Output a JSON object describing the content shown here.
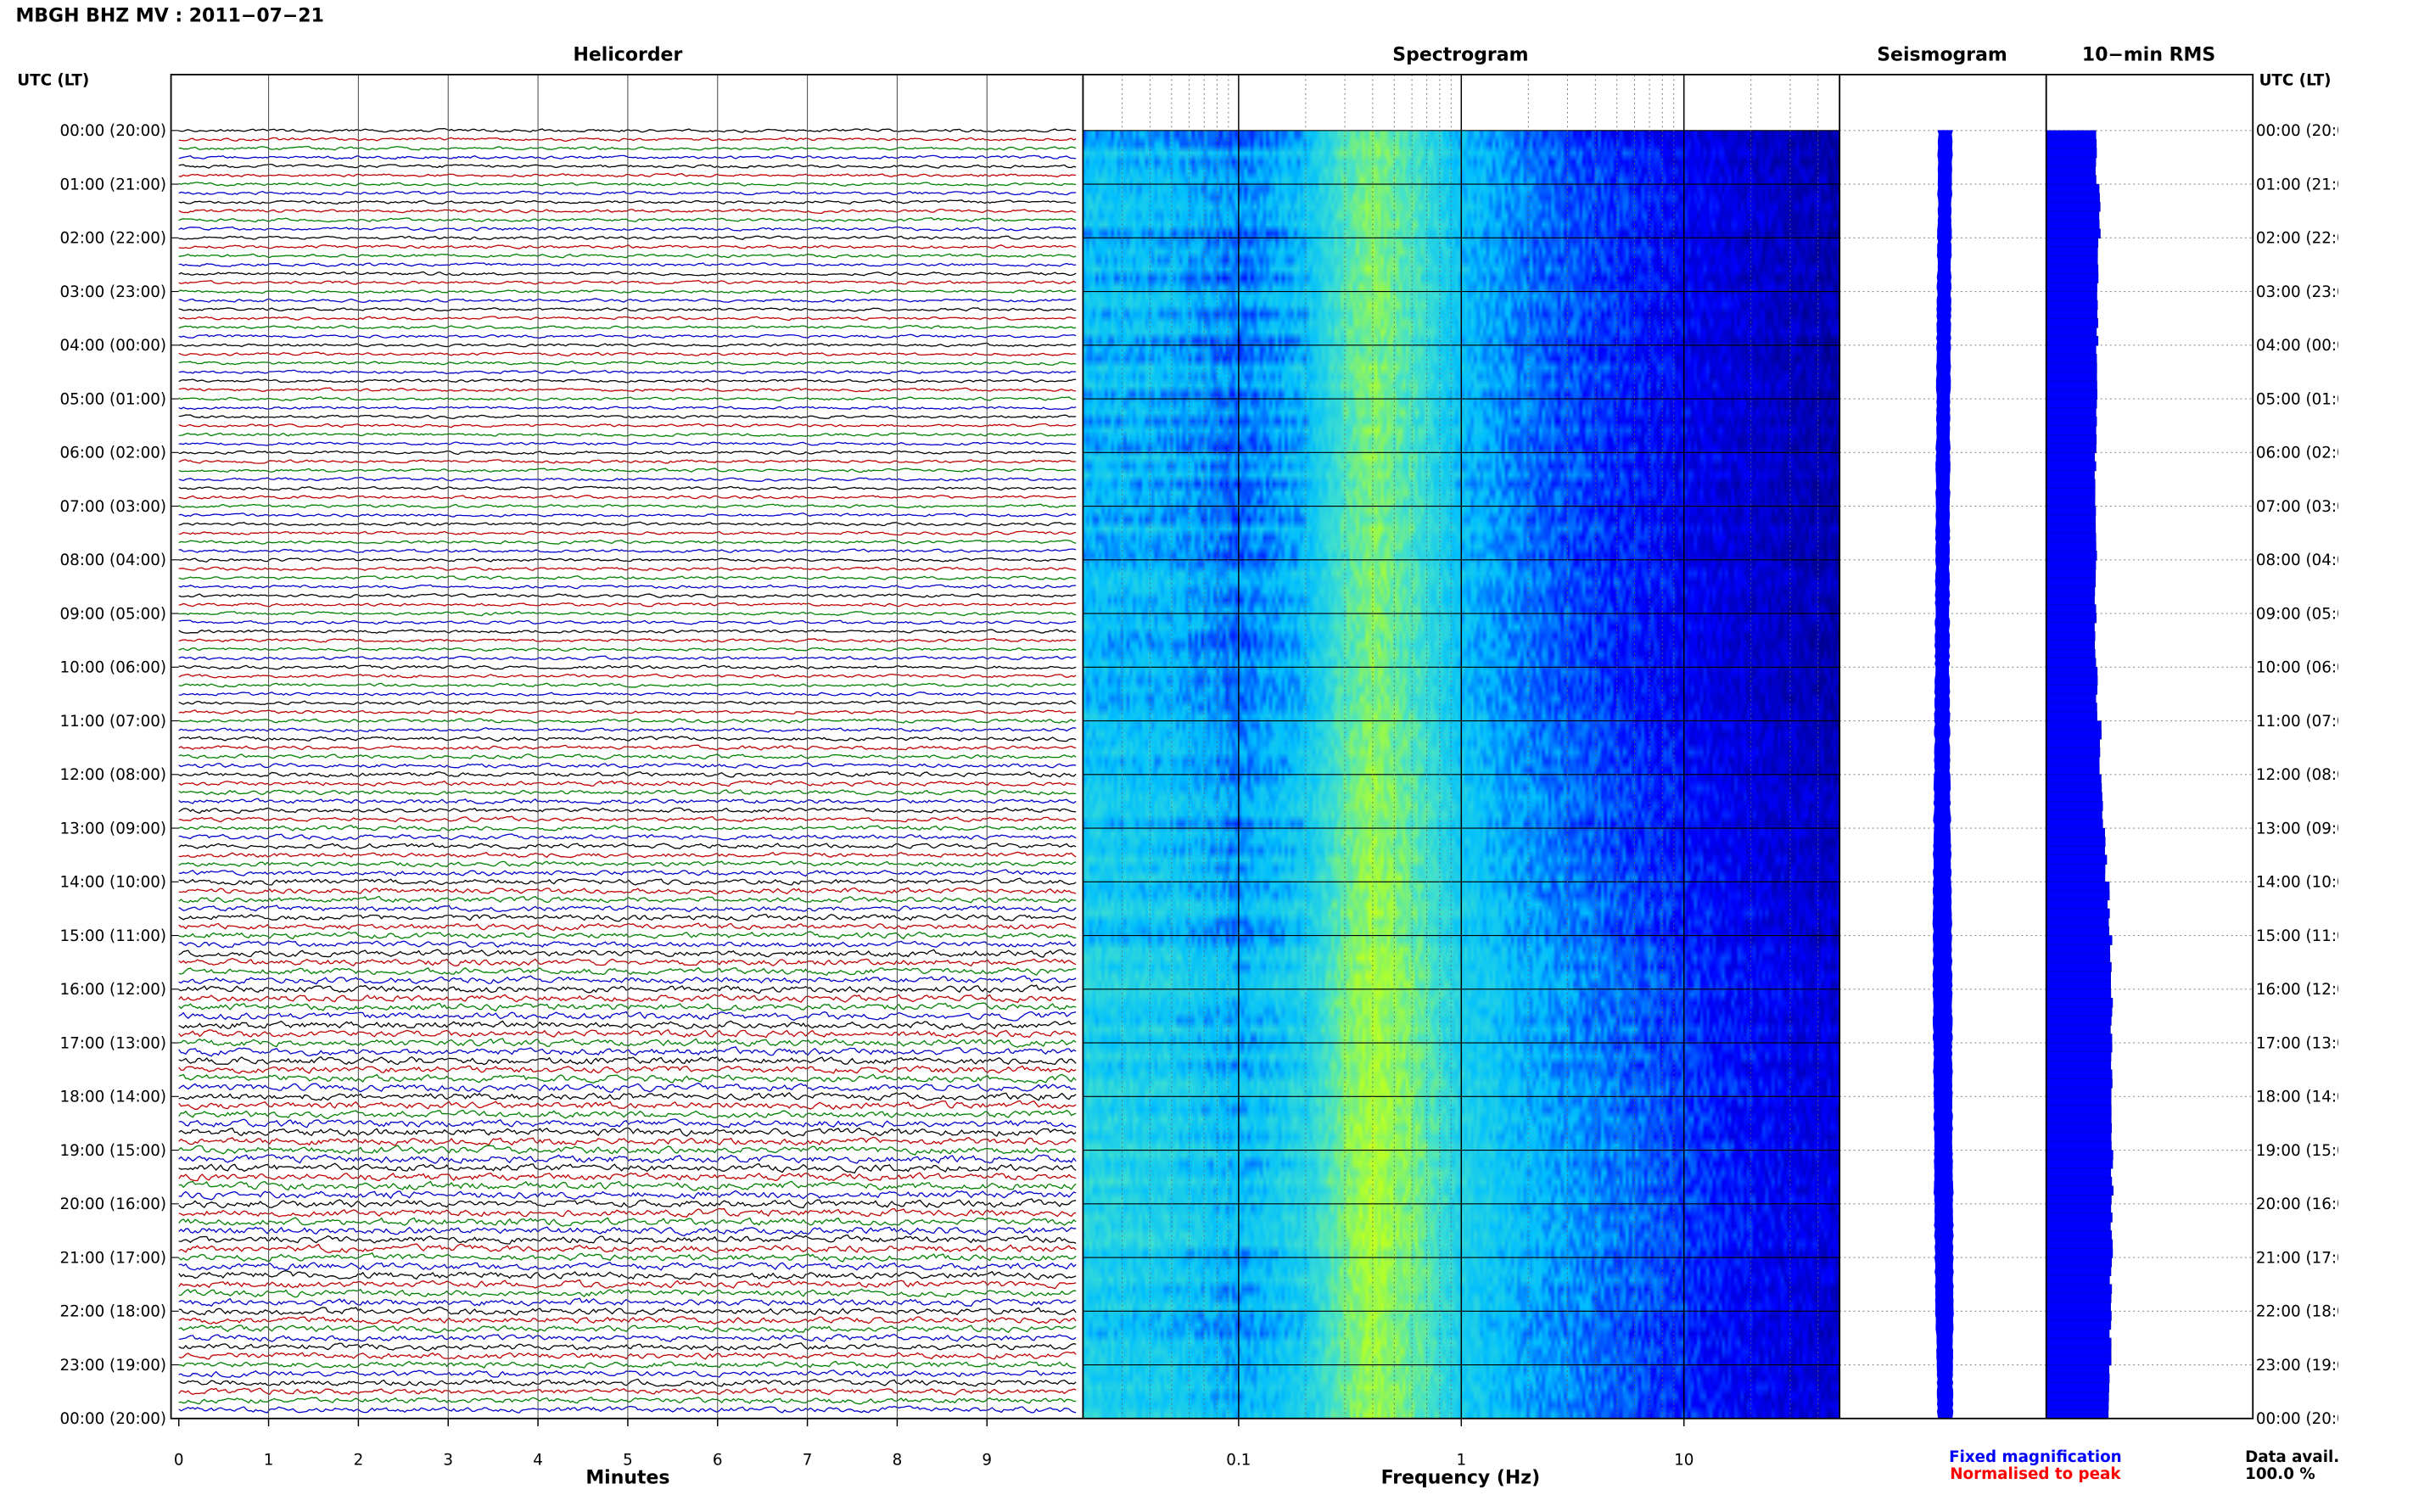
{
  "header": {
    "title": "MBGH BHZ MV : 2011−07−21"
  },
  "panels": {
    "helicorder": "Helicorder",
    "spectrogram": "Spectrogram",
    "seismogram": "Seismogram",
    "rms": "10−min RMS"
  },
  "axis": {
    "left_header": "UTC (LT)",
    "right_header": "UTC (LT)",
    "minutes_label": "Minutes",
    "frequency_label": "Frequency (Hz)"
  },
  "legend": {
    "fixed": "Fixed magnification",
    "normalised": "Normalised to peak"
  },
  "data_avail": {
    "label": "Data avail.",
    "value": "100.0 %"
  },
  "colors": {
    "helicorder_traces": [
      "#000000",
      "#c00000",
      "#008000",
      "#0000cc"
    ],
    "seismogram": "#0000ff",
    "rms": "#0000ff",
    "fixed_legend": "#0000ff",
    "normalised_legend": "#ff0000"
  },
  "chart_data": [
    {
      "type": "line",
      "panel": "Helicorder",
      "xlabel": "Minutes",
      "ylabel": "UTC (LT)",
      "x_ticks": [
        "0",
        "1",
        "2",
        "3",
        "4",
        "5",
        "6",
        "7",
        "8",
        "9"
      ],
      "xlim": [
        0,
        10
      ],
      "lines_per_hour": 6,
      "y_ticks_left": [
        "00:00 (20:00)",
        "01:00 (21:00)",
        "02:00 (22:00)",
        "03:00 (23:00)",
        "04:00 (00:00)",
        "05:00 (01:00)",
        "06:00 (02:00)",
        "07:00 (03:00)",
        "08:00 (04:00)",
        "09:00 (05:00)",
        "10:00 (06:00)",
        "11:00 (07:00)",
        "12:00 (08:00)",
        "13:00 (09:00)",
        "14:00 (10:00)",
        "15:00 (11:00)",
        "16:00 (12:00)",
        "17:00 (13:00)",
        "18:00 (14:00)",
        "19:00 (15:00)",
        "20:00 (16:00)",
        "21:00 (17:00)",
        "22:00 (18:00)",
        "23:00 (19:00)",
        "00:00 (20:00)"
      ],
      "line_amplitude_relative": [
        1.0,
        1.0,
        1.0,
        1.0,
        1.0,
        1.0,
        1.05,
        1.05,
        1.05,
        1.05,
        1.1,
        1.1,
        1.05,
        1.05,
        1.05,
        1.05,
        1.05,
        1.05,
        1.0,
        1.0,
        1.0,
        1.0,
        1.0,
        1.0,
        1.0,
        1.0,
        1.0,
        1.0,
        1.0,
        1.0,
        1.0,
        1.0,
        1.0,
        1.0,
        1.0,
        1.0,
        1.0,
        1.0,
        1.0,
        1.0,
        1.0,
        1.0,
        1.05,
        1.05,
        1.05,
        1.05,
        1.05,
        1.05,
        1.05,
        1.05,
        1.05,
        1.05,
        1.05,
        1.05,
        1.05,
        1.05,
        1.05,
        1.05,
        1.05,
        1.05,
        1.1,
        1.1,
        1.1,
        1.1,
        1.15,
        1.15,
        1.2,
        1.2,
        1.3,
        1.3,
        1.4,
        1.4,
        1.5,
        1.5,
        1.5,
        1.5,
        1.45,
        1.45,
        1.5,
        1.55,
        1.6,
        1.6,
        1.65,
        1.7,
        1.75,
        1.8,
        1.8,
        1.85,
        1.9,
        1.95,
        2.0,
        2.0,
        2.05,
        2.1,
        2.1,
        2.15,
        2.2,
        2.2,
        2.25,
        2.25,
        2.3,
        2.3,
        2.3,
        2.3,
        2.3,
        2.3,
        2.3,
        2.3,
        2.3,
        2.3,
        2.3,
        2.3,
        2.35,
        2.35,
        2.4,
        2.4,
        2.4,
        2.4,
        2.4,
        2.4,
        2.3,
        2.3,
        2.35,
        2.35,
        2.3,
        2.3,
        2.3,
        2.3,
        2.25,
        2.25,
        2.2,
        2.2,
        2.1,
        2.1,
        2.0,
        2.0,
        2.0,
        2.0,
        1.95,
        1.9,
        1.9,
        1.85,
        1.8,
        1.8
      ]
    },
    {
      "type": "heatmap",
      "panel": "Spectrogram",
      "xlabel": "Frequency (Hz)",
      "x_scale": "log",
      "xlim": [
        0.02,
        50
      ],
      "x_ticks": [
        "0.1",
        "1",
        "10"
      ],
      "ylim_hours": [
        0,
        24
      ],
      "relative_power_profile": [
        {
          "freq": 0.02,
          "level": 0.42
        },
        {
          "freq": 0.05,
          "level": 0.4
        },
        {
          "freq": 0.1,
          "level": 0.32
        },
        {
          "freq": 0.2,
          "level": 0.42
        },
        {
          "freq": 0.3,
          "level": 0.62
        },
        {
          "freq": 0.4,
          "level": 0.72
        },
        {
          "freq": 0.6,
          "level": 0.62
        },
        {
          "freq": 1,
          "level": 0.42
        },
        {
          "freq": 2,
          "level": 0.32
        },
        {
          "freq": 5,
          "level": 0.24
        },
        {
          "freq": 10,
          "level": 0.18
        },
        {
          "freq": 20,
          "level": 0.12
        },
        {
          "freq": 50,
          "level": 0.06
        }
      ],
      "colormap": [
        "#00008b",
        "#0000ff",
        "#00bfff",
        "#40e0d0",
        "#adff2f",
        "#ffff00"
      ]
    },
    {
      "type": "line",
      "panel": "Seismogram",
      "note": "Compressed 24 h seismogram envelope, fixed magnification",
      "series": [
        {
          "name": "Fixed magnification",
          "values": [
            1.0,
            0.95,
            0.95,
            0.95,
            0.95,
            0.95,
            0.95,
            0.95,
            0.95,
            1.0,
            1.0,
            1.05,
            1.1,
            1.2,
            1.3,
            1.35,
            1.35,
            1.35,
            1.35,
            1.35,
            1.35,
            1.3,
            1.25,
            1.1,
            1.05
          ]
        }
      ]
    },
    {
      "type": "bar",
      "panel": "10-min RMS",
      "orientation": "horizontal",
      "series": [
        {
          "name": "10-min RMS",
          "values": [
            0.8,
            0.86,
            0.83,
            0.82,
            0.81,
            0.8,
            0.79,
            0.8,
            0.79,
            0.79,
            0.81,
            0.87,
            0.9,
            0.96,
            1.0,
            1.04,
            1.05,
            1.05,
            1.04,
            1.06,
            1.05,
            1.04,
            1.03,
            1.02
          ]
        }
      ]
    }
  ]
}
